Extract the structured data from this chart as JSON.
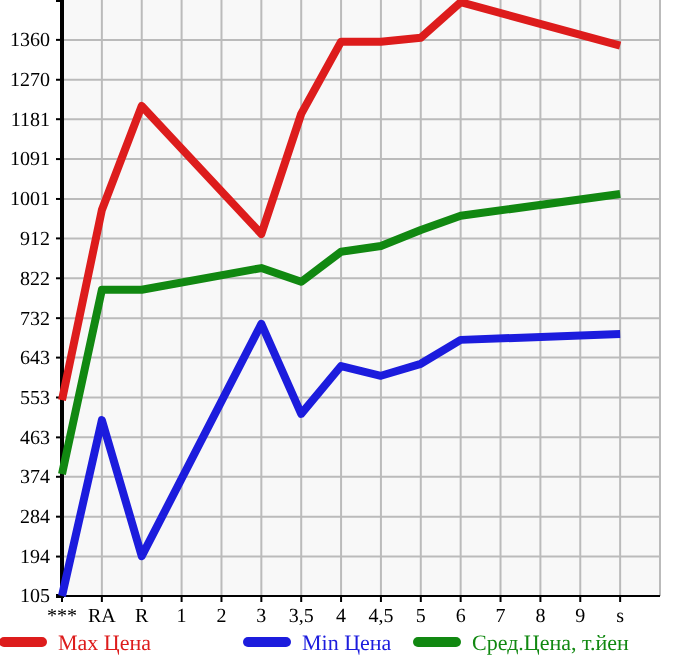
{
  "chart_data": {
    "type": "line",
    "categories": [
      "***",
      "RA",
      "R",
      "1",
      "2",
      "3",
      "3,5",
      "4",
      "4,5",
      "5",
      "6",
      "7",
      "8",
      "9",
      "s"
    ],
    "ylim": [
      105,
      1450
    ],
    "yticks": [
      105,
      194,
      284,
      374,
      463,
      553,
      643,
      732,
      822,
      912,
      1001,
      1091,
      1181,
      1270,
      1360
    ],
    "grid": true,
    "legend": "bottom",
    "line_style": "solid",
    "marker": "none",
    "series": [
      {
        "name": "Max Цена",
        "color": "#dd1c1c",
        "values": [
          547,
          976,
          1211,
          null,
          null,
          922,
          1193,
          1356,
          1356,
          1365,
          1445,
          null,
          null,
          null,
          1347
        ]
      },
      {
        "name": "Min Цена",
        "color": "#1c1cdd",
        "values": [
          105,
          502,
          195,
          null,
          null,
          719,
          516,
          624,
          602,
          629,
          683,
          null,
          null,
          null,
          696
        ]
      },
      {
        "name": "Сред.Цена, т.йен",
        "color": "#118811",
        "values": [
          380,
          796,
          796,
          null,
          null,
          845,
          814,
          882,
          895,
          931,
          963,
          null,
          null,
          null,
          1012
        ]
      }
    ]
  }
}
